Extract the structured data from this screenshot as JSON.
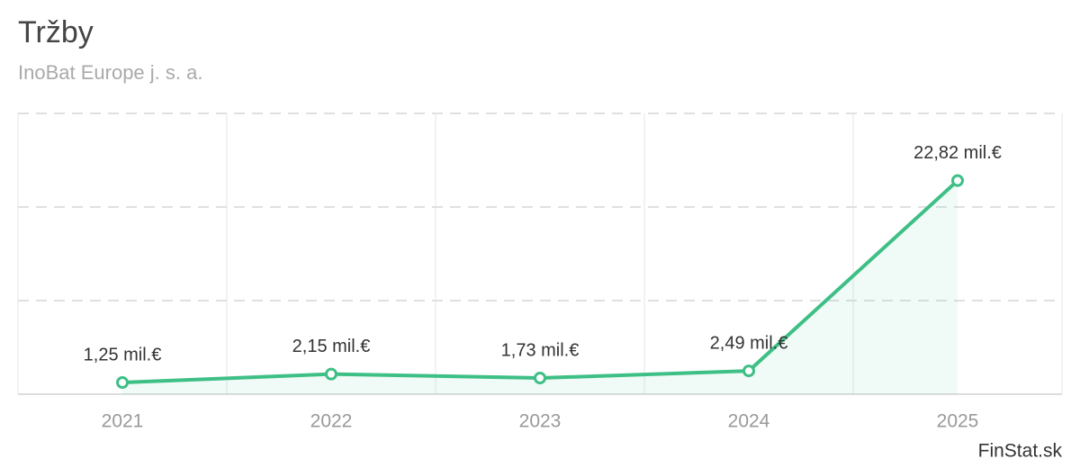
{
  "chart_data": {
    "type": "line",
    "title": "Tržby",
    "subtitle": "InoBat Europe j. s. a.",
    "categories": [
      "2021",
      "2022",
      "2023",
      "2024",
      "2025"
    ],
    "values": [
      1.25,
      2.15,
      1.73,
      2.49,
      22.82
    ],
    "value_labels": [
      "1,25 mil.€",
      "2,15 mil.€",
      "1,73 mil.€",
      "2,49 mil.€",
      "22,82 mil.€"
    ],
    "color": "#3dbf86",
    "ylim": [
      0,
      30
    ],
    "yticks": [
      0,
      10,
      20,
      30
    ],
    "grid": true,
    "source": "FinStat.sk"
  }
}
